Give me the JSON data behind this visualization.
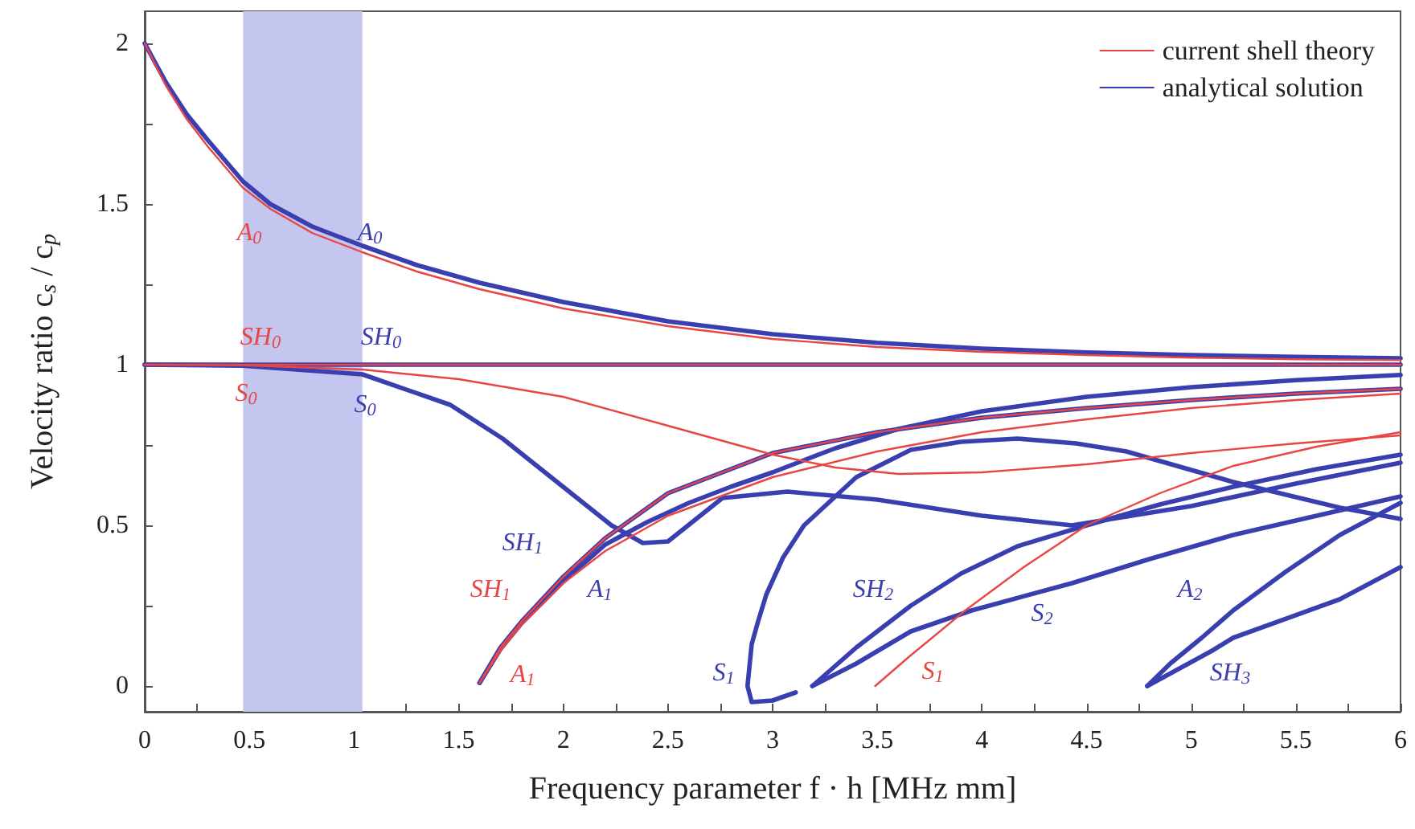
{
  "chart_data": {
    "type": "line",
    "xlabel": "Frequency parameter f · h [MHz mm]",
    "ylabel": "Velocity ratio c$_{s}$ / c$_{p}$",
    "xlim": [
      0,
      6
    ],
    "ylim": [
      -0.08,
      2.1
    ],
    "xticks": [
      0,
      {
        "value": 0.25,
        "label": null
      },
      0.5,
      {
        "value": 0.75,
        "label": null
      },
      1,
      {
        "value": 1.25,
        "label": null
      },
      1.5,
      {
        "value": 1.75,
        "label": null
      },
      2,
      {
        "value": 2.25,
        "label": null
      },
      2.5,
      {
        "value": 2.75,
        "label": null
      },
      3,
      {
        "value": 3.25,
        "label": null
      },
      3.5,
      {
        "value": 3.75,
        "label": null
      },
      4,
      {
        "value": 4.25,
        "label": null
      },
      4.5,
      {
        "value": 4.75,
        "label": null
      },
      5,
      {
        "value": 5.25,
        "label": null
      },
      5.5,
      {
        "value": 5.75,
        "label": null
      },
      6
    ],
    "yticks": [
      0,
      {
        "value": 0.25,
        "label": null
      },
      0.5,
      {
        "value": 0.75,
        "label": null
      },
      1,
      {
        "value": 1.25,
        "label": null
      },
      1.5,
      {
        "value": 1.75,
        "label": null
      },
      2
    ],
    "legend": "top right",
    "marker": "none",
    "bands": [
      {
        "axis": "x",
        "from": 0.47,
        "to": 1.04,
        "color": "#c5c6ef"
      }
    ],
    "annotations": [
      "A$_{0}$",
      "A$_{0}$",
      "SH$_{0}$",
      "SH$_{0}$",
      "S$_{0}$",
      "S$_{0}$",
      "SH$_{1}$",
      "SH$_{1}$",
      "A$_{1}$",
      "A$_{1}$",
      "S$_{1}$",
      "SH$_{2}$",
      "S$_{2}$",
      "S$_{1}$",
      "A$_{2}$",
      "SH$_{3}$"
    ],
    "series": [
      {
        "name": "current shell theory",
        "color": "#e84545",
        "x": [
          0,
          0.1,
          0.2,
          0.3,
          0.47,
          0.6,
          0.8,
          1.04,
          1.3,
          1.6,
          2,
          2.5,
          3,
          3.5,
          4,
          4.5,
          5,
          5.5,
          6
        ],
        "values": [
          2,
          1.87,
          1.765,
          1.68,
          1.55,
          1.485,
          1.41,
          1.35,
          1.29,
          1.235,
          1.175,
          1.12,
          1.08,
          1.055,
          1.04,
          1.03,
          1.022,
          1.017,
          1.014
        ]
      },
      {
        "color": "#e84545",
        "x": [
          0,
          0.47,
          6
        ],
        "values": [
          1,
          1,
          1
        ]
      },
      {
        "color": "#e84545",
        "x": [
          0,
          0.47,
          1.04,
          1.5,
          2,
          2.5,
          3,
          3.3,
          3.6,
          4,
          4.5,
          5,
          5.5,
          6
        ],
        "values": [
          1,
          0.998,
          0.985,
          0.955,
          0.9,
          0.81,
          0.72,
          0.68,
          0.66,
          0.665,
          0.69,
          0.725,
          0.755,
          0.78
        ]
      },
      {
        "color": "#e84545",
        "x": [
          1.6,
          1.7,
          1.8,
          1.9,
          2,
          2.2,
          2.5,
          3,
          3.5,
          4,
          4.5,
          5,
          5.5,
          6
        ],
        "values": [
          0.01,
          0.12,
          0.2,
          0.27,
          0.34,
          0.46,
          0.6,
          0.725,
          0.79,
          0.835,
          0.865,
          0.89,
          0.91,
          0.925
        ]
      },
      {
        "color": "#e84545",
        "x": [
          1.6,
          1.65,
          1.7,
          1.8,
          2,
          2.2,
          2.5,
          3,
          3.5,
          4,
          4.5,
          5,
          5.5,
          6
        ],
        "values": [
          0.01,
          0.06,
          0.11,
          0.19,
          0.32,
          0.42,
          0.53,
          0.65,
          0.73,
          0.79,
          0.83,
          0.865,
          0.89,
          0.91
        ]
      },
      {
        "color": "#e84545",
        "x": [
          3.49,
          3.65,
          3.92,
          4.2,
          4.5,
          4.85,
          5.2,
          5.6,
          6
        ],
        "values": [
          0,
          0.09,
          0.235,
          0.37,
          0.5,
          0.6,
          0.685,
          0.745,
          0.79
        ]
      },
      {
        "name": "analytical solution",
        "color": "#3a3fb0",
        "x": [
          0,
          0.1,
          0.2,
          0.3,
          0.47,
          0.6,
          0.8,
          1.04,
          1.3,
          1.6,
          2,
          2.5,
          3,
          3.5,
          4,
          4.5,
          5,
          5.5,
          6
        ],
        "values": [
          2,
          1.88,
          1.78,
          1.7,
          1.57,
          1.5,
          1.43,
          1.37,
          1.31,
          1.255,
          1.195,
          1.135,
          1.095,
          1.068,
          1.05,
          1.038,
          1.03,
          1.024,
          1.02
        ]
      },
      {
        "color": "#3a3fb0",
        "x": [
          0,
          1.04,
          6
        ],
        "values": [
          1,
          1,
          1
        ]
      },
      {
        "color": "#3a3fb0",
        "x": [
          0,
          0.47,
          1.04,
          1.46,
          1.71,
          1.97,
          2.23,
          2.38,
          2.5,
          2.76,
          3.07,
          3.5,
          4,
          4.43,
          5,
          5.5,
          6
        ],
        "values": [
          1,
          0.997,
          0.97,
          0.875,
          0.77,
          0.635,
          0.5,
          0.445,
          0.45,
          0.585,
          0.605,
          0.58,
          0.53,
          0.5,
          0.56,
          0.63,
          0.695
        ]
      },
      {
        "color": "#3a3fb0",
        "x": [
          1.6,
          1.7,
          1.8,
          1.9,
          2,
          2.2,
          2.5,
          3,
          3.5,
          4,
          4.5,
          5,
          5.5,
          6
        ],
        "values": [
          0.01,
          0.12,
          0.2,
          0.27,
          0.34,
          0.46,
          0.6,
          0.725,
          0.79,
          0.835,
          0.865,
          0.89,
          0.91,
          0.925
        ]
      },
      {
        "color": "#3a3fb0",
        "x": [
          1.6,
          1.7,
          1.8,
          2,
          2.2,
          2.4,
          2.6,
          2.8,
          3,
          3.3,
          3.6,
          4,
          4.5,
          5,
          5.5,
          6
        ],
        "values": [
          0.01,
          0.115,
          0.195,
          0.325,
          0.44,
          0.51,
          0.57,
          0.62,
          0.665,
          0.74,
          0.8,
          0.855,
          0.9,
          0.93,
          0.952,
          0.968
        ]
      },
      {
        "color": "#3a3fb0",
        "x": [
          3.11,
          3,
          2.9,
          2.88,
          2.9,
          2.93,
          2.97,
          3.05,
          3.15,
          3.4,
          3.66,
          3.9,
          4.17,
          4.45,
          4.69,
          5.2,
          5.71,
          6
        ],
        "values": [
          -0.02,
          -0.045,
          -0.05,
          0,
          0.13,
          0.2,
          0.285,
          0.4,
          0.5,
          0.65,
          0.735,
          0.76,
          0.77,
          0.755,
          0.73,
          0.635,
          0.555,
          0.52
        ]
      },
      {
        "color": "#3a3fb0",
        "x": [
          3.19,
          3.4,
          3.5,
          3.66,
          3.9,
          4.17,
          4.5,
          4.85,
          5.2,
          5.6,
          6
        ],
        "values": [
          0,
          0.12,
          0.17,
          0.25,
          0.35,
          0.435,
          0.5,
          0.565,
          0.62,
          0.675,
          0.72
        ]
      },
      {
        "color": "#3a3fb0",
        "x": [
          3.19,
          3.4,
          3.66,
          3.95,
          4.43,
          4.8,
          5.2,
          5.6,
          6
        ],
        "values": [
          0,
          0.07,
          0.17,
          0.235,
          0.32,
          0.395,
          0.47,
          0.53,
          0.59
        ]
      },
      {
        "color": "#3a3fb0",
        "x": [
          4.79,
          4.9,
          5.05,
          5.2,
          5.45,
          5.71,
          6
        ],
        "values": [
          0,
          0.07,
          0.15,
          0.235,
          0.355,
          0.47,
          0.57
        ]
      },
      {
        "color": "#3a3fb0",
        "x": [
          4.79,
          5.1,
          5.2,
          5.71,
          6
        ],
        "values": [
          0,
          0.11,
          0.15,
          0.27,
          0.37
        ]
      }
    ]
  }
}
